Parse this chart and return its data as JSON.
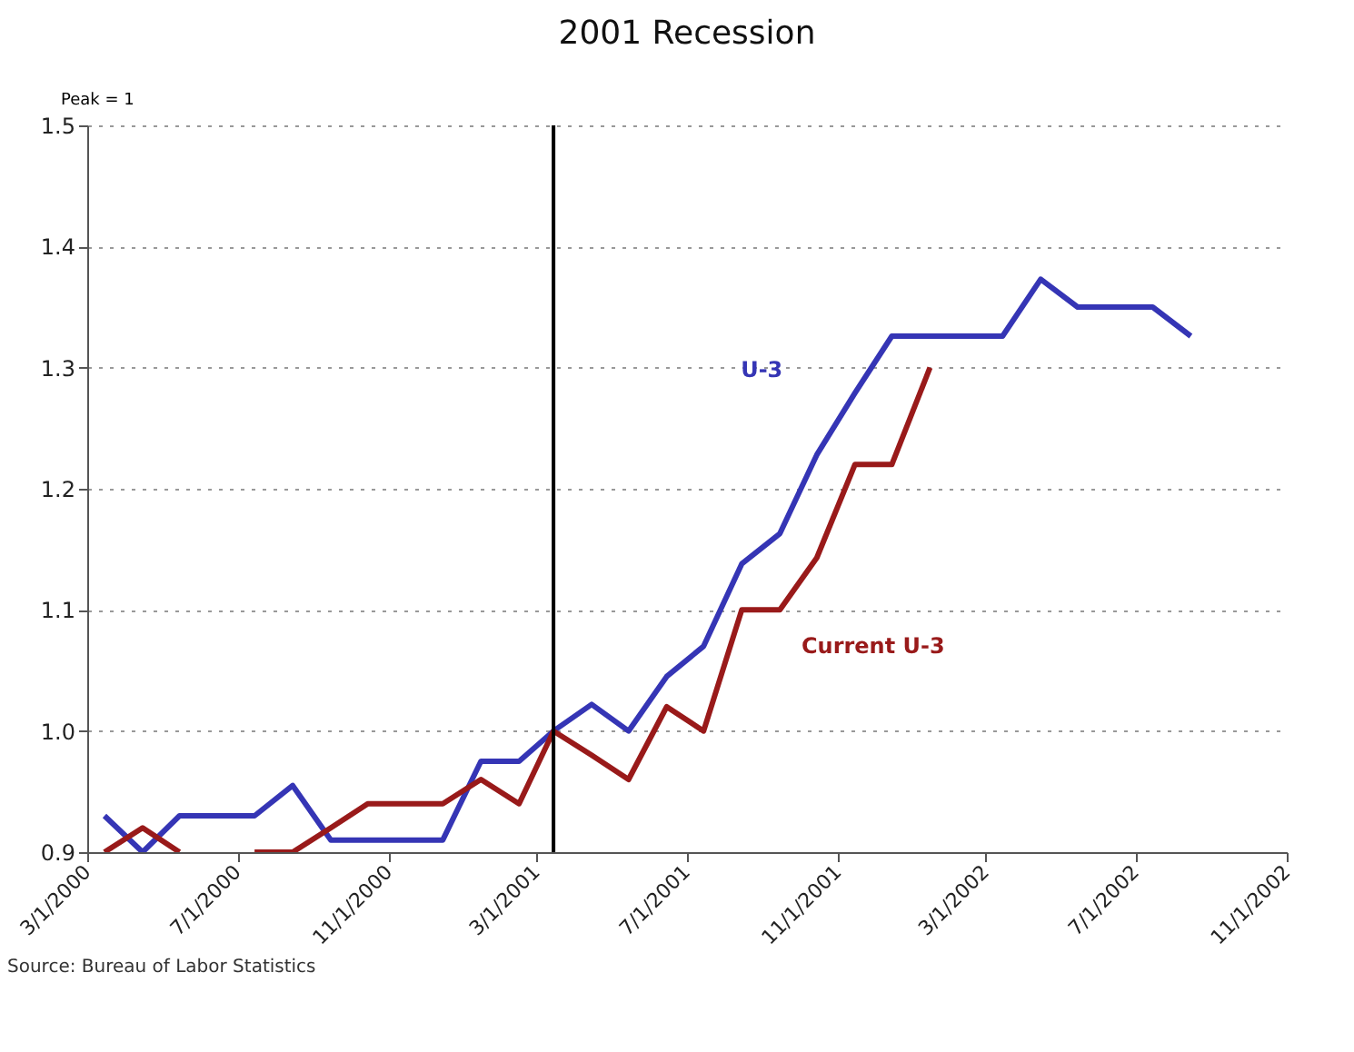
{
  "chart_data": {
    "type": "line",
    "title": "2001 Recession",
    "ylabel": "Peak = 1",
    "x": [
      "2000-03-15",
      "2000-04-15",
      "2000-05-15",
      "2000-06-15",
      "2000-07-15",
      "2000-08-15",
      "2000-09-15",
      "2000-10-15",
      "2000-11-15",
      "2000-12-15",
      "2001-01-15",
      "2001-02-15",
      "2001-03-15",
      "2001-04-15",
      "2001-05-15",
      "2001-06-15",
      "2001-07-15",
      "2001-08-15",
      "2001-09-15",
      "2001-10-15",
      "2001-11-15",
      "2001-12-15",
      "2002-01-15",
      "2002-02-15",
      "2002-03-15",
      "2002-04-15",
      "2002-05-15",
      "2002-06-15",
      "2002-07-15",
      "2002-08-15"
    ],
    "series": [
      {
        "name": "U-3",
        "color": "#3535b5",
        "values": [
          0.93,
          0.9,
          0.93,
          0.93,
          0.93,
          0.955,
          0.91,
          0.91,
          0.91,
          0.91,
          0.975,
          0.975,
          1.0,
          1.022,
          1.0,
          1.045,
          1.07,
          1.138,
          1.163,
          1.228,
          1.279,
          1.326,
          1.326,
          1.326,
          1.326,
          1.373,
          1.35,
          1.35,
          1.35,
          1.326
        ]
      },
      {
        "name": "Current U-3",
        "color": "#991a1a",
        "x": [
          "2000-03-15",
          "2000-04-15",
          "2000-05-15",
          "2000-06-15",
          "2000-07-15",
          "2000-08-15",
          "2000-09-15",
          "2000-10-15",
          "2000-11-15",
          "2000-12-15",
          "2001-01-15",
          "2001-02-15",
          "2001-03-15",
          "2001-04-15",
          "2001-05-15",
          "2001-06-15",
          "2001-07-15",
          "2001-08-15",
          "2001-09-15",
          "2001-10-15",
          "2001-11-15",
          "2001-12-15",
          "2002-01-15"
        ],
        "values": [
          0.9,
          0.92,
          0.9,
          null,
          0.9,
          0.9,
          0.92,
          0.94,
          0.94,
          0.94,
          0.96,
          0.94,
          1.0,
          0.98,
          0.96,
          1.02,
          1.0,
          1.1,
          1.1,
          1.143,
          1.22,
          1.22,
          1.3
        ]
      }
    ],
    "xlim": [
      "2000-03-01",
      "2002-11-01"
    ],
    "xticks": [
      {
        "value": "2000-03-01",
        "label": "3/1/2000"
      },
      {
        "value": "2000-07-01",
        "label": "7/1/2000"
      },
      {
        "value": "2000-11-01",
        "label": "11/1/2000"
      },
      {
        "value": "2001-03-01",
        "label": "3/1/2001"
      },
      {
        "value": "2001-07-01",
        "label": "7/1/2001"
      },
      {
        "value": "2001-11-01",
        "label": "11/1/2001"
      },
      {
        "value": "2002-03-01",
        "label": "3/1/2002"
      },
      {
        "value": "2002-07-01",
        "label": "7/1/2002"
      },
      {
        "value": "2002-11-01",
        "label": "11/1/2002"
      }
    ],
    "ylim": [
      0.9,
      1.5
    ],
    "yticks": [
      0.9,
      {
        "value": 1,
        "label": "1.0"
      },
      1.1,
      1.2,
      1.3,
      1.4,
      1.5
    ],
    "grid": "y",
    "marker": "none",
    "line_style": "solid",
    "ref_lines": [
      {
        "axis": "x",
        "value": "2001-03-15",
        "color": "#000000"
      }
    ],
    "annotations": [
      "Source: Bureau of Labor Statistics"
    ]
  }
}
